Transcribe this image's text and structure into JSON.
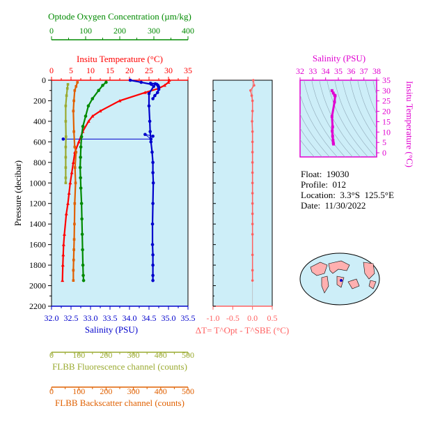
{
  "colors": {
    "oxygen": "#008a00",
    "temperature": "#ff0000",
    "salinity": "#0000cc",
    "fluorescence": "#9aaa30",
    "backscatter": "#e06000",
    "delta": "#ff6060",
    "inset": "#e000d0",
    "panel_bg": "#cdeef8",
    "land": "#ffb0b0"
  },
  "info": {
    "float": "Float:  19030",
    "profile": "Profile:  012",
    "location": "Location:  3.3°S  125.5°E",
    "date": "Date:  11/30/2022"
  },
  "chart_data": [
    {
      "type": "line",
      "title": "",
      "ylabel": "Pressure (decibar)",
      "ylim": [
        2200,
        0
      ],
      "yticks": [
        "0",
        "200",
        "400",
        "600",
        "800",
        "1000",
        "1200",
        "1400",
        "1600",
        "1800",
        "2000",
        "2200"
      ],
      "grid": false,
      "axes": {
        "oxygen": {
          "label": "Optode Oxygen Concentration (µm/kg)",
          "xlim": [
            0,
            400
          ],
          "ticks": [
            "0",
            "100",
            "200",
            "300",
            "400"
          ]
        },
        "temperature": {
          "label": "Insitu Temperature (°C)",
          "xlim": [
            0,
            35
          ],
          "ticks": [
            "0",
            "5",
            "10",
            "15",
            "20",
            "25",
            "30",
            "35"
          ]
        },
        "salinity": {
          "label": "Salinity (PSU)",
          "xlim": [
            32.0,
            35.5
          ],
          "ticks": [
            "32.0",
            "32.5",
            "33.0",
            "33.5",
            "34.0",
            "34.5",
            "35.0",
            "35.5"
          ]
        },
        "fluorescence": {
          "label": "FLBB Fluorescence channel (counts)",
          "xlim": [
            0,
            500
          ],
          "ticks": [
            "0",
            "100",
            "200",
            "300",
            "400",
            "500"
          ]
        },
        "backscatter": {
          "label": "FLBB Backscatter channel (counts)",
          "xlim": [
            0,
            500
          ],
          "ticks": [
            "0",
            "100",
            "200",
            "300",
            "400",
            "500"
          ]
        }
      },
      "series": [
        {
          "axis": "temperature",
          "x": [
            30.2,
            30.0,
            29.0,
            27.5,
            24.0,
            17.5,
            12.5,
            10.5,
            9.5,
            8.0,
            7.0,
            6.0,
            5.6,
            5.2,
            4.8,
            4.5,
            4.2,
            3.8,
            3.3,
            3.1,
            3.0,
            2.9,
            2.8
          ],
          "y": [
            0,
            20,
            50,
            80,
            120,
            200,
            300,
            350,
            400,
            500,
            600,
            700,
            800,
            900,
            1000,
            1100,
            1200,
            1300,
            1500,
            1600,
            1700,
            1800,
            1950
          ]
        },
        {
          "axis": "salinity",
          "x": [
            34.02,
            34.3,
            34.56,
            34.62,
            34.5,
            34.5,
            34.52,
            34.53,
            34.55,
            34.58,
            34.6,
            34.6,
            34.61,
            34.6,
            34.59,
            34.59,
            34.6,
            34.6,
            34.6,
            34.6
          ],
          "y": [
            0,
            20,
            40,
            60,
            130,
            250,
            400,
            500,
            600,
            700,
            800,
            900,
            1000,
            1200,
            1400,
            1600,
            1700,
            1800,
            1900,
            1950
          ]
        },
        {
          "axis": "salinity",
          "x": [
            34.54,
            34.66,
            34.7,
            34.73,
            34.74,
            34.75,
            34.75,
            34.72,
            34.65,
            34.6
          ],
          "y": [
            30,
            35,
            40,
            50,
            60,
            70,
            90,
            120,
            150,
            180
          ]
        },
        {
          "axis": "salinity",
          "x": [
            32.3,
            34.55,
            34.4,
            34.6
          ],
          "y": [
            573,
            573,
            528,
            545
          ]
        },
        {
          "axis": "oxygen",
          "x": [
            160,
            150,
            138,
            120,
            108,
            100,
            92,
            88,
            86,
            85,
            84,
            85,
            86,
            88,
            89,
            90,
            91,
            92,
            93,
            94
          ],
          "y": [
            20,
            50,
            100,
            180,
            250,
            350,
            450,
            550,
            650,
            750,
            850,
            950,
            1050,
            1200,
            1350,
            1500,
            1650,
            1800,
            1900,
            1950
          ]
        },
        {
          "axis": "fluorescence",
          "x": [
            60,
            58,
            55,
            52,
            52,
            53,
            52,
            52,
            52,
            52,
            52
          ],
          "y": [
            40,
            80,
            150,
            250,
            400,
            550,
            650,
            750,
            850,
            950,
            1000
          ]
        },
        {
          "axis": "backscatter",
          "x": [
            95,
            90,
            85,
            82,
            80,
            82,
            85,
            90,
            86,
            88,
            85,
            84,
            83,
            82,
            81,
            80,
            80
          ],
          "y": [
            20,
            60,
            100,
            200,
            300,
            500,
            650,
            700,
            850,
            1000,
            1200,
            1400,
            1550,
            1650,
            1750,
            1850,
            1950
          ]
        }
      ]
    },
    {
      "type": "scatter",
      "title": "",
      "xlabel": "ΔT= T^Opt - T^SBE (°C)",
      "xlim": [
        -1.0,
        0.5
      ],
      "xticks": [
        "-1.0",
        "-0.5",
        "0.0",
        "0.5"
      ],
      "ylim": [
        2200,
        0
      ],
      "series": [
        {
          "x": [
            0.02,
            0.04,
            -0.05,
            -0.02,
            0.0,
            0.0,
            -0.01,
            0.0,
            0.0,
            0.0,
            0.0,
            0.0,
            0.0,
            0.0,
            0.0,
            0.0,
            0.0,
            0.0,
            0.0,
            0.0,
            0.0
          ],
          "y": [
            0,
            50,
            100,
            150,
            200,
            300,
            400,
            500,
            600,
            700,
            800,
            900,
            1000,
            1100,
            1200,
            1300,
            1400,
            1500,
            1700,
            1850,
            1950
          ]
        }
      ]
    },
    {
      "type": "line",
      "title": "",
      "xlabel": "Salinity (PSU)",
      "xlim": [
        32,
        38
      ],
      "xticks": [
        "32",
        "33",
        "34",
        "35",
        "36",
        "37",
        "38"
      ],
      "ylabel": "Insitu Temperature (°C)",
      "ylim": [
        -2,
        35
      ],
      "yticks": [
        "0",
        "5",
        "10",
        "15",
        "20",
        "25",
        "30",
        "35"
      ],
      "series": [
        {
          "x": [
            34.5,
            34.6,
            34.7,
            34.75,
            34.7,
            34.5,
            34.55,
            34.52,
            34.55,
            34.58,
            34.6,
            34.62
          ],
          "y": [
            30,
            28.8,
            27.8,
            27.5,
            24.5,
            17.5,
            12.5,
            10.5,
            8,
            6,
            4.8,
            4.2
          ]
        }
      ]
    }
  ]
}
